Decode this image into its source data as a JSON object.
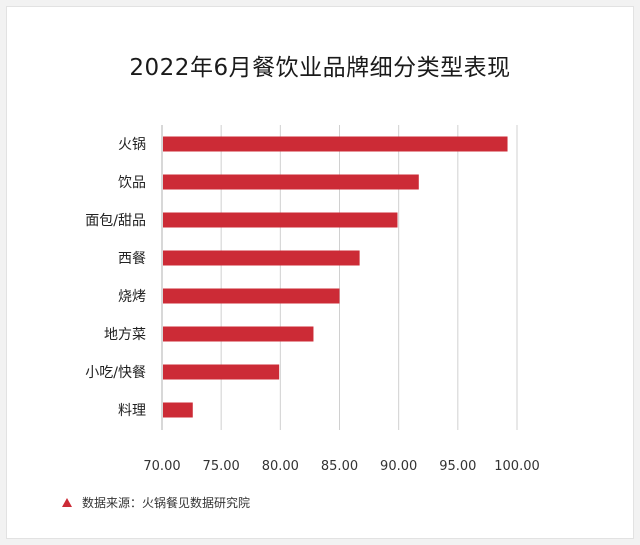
{
  "title": "2022年6月餐饮业品牌细分类型表现",
  "source": "数据来源：火锅餐见数据研究院",
  "colors": {
    "bar": "#cc2b36",
    "grid": "#d0d0d0",
    "axis": "#b0b0b0"
  },
  "chart_data": {
    "type": "bar",
    "orientation": "horizontal",
    "categories": [
      "火锅",
      "饮品",
      "面包/甜品",
      "西餐",
      "烧烤",
      "地方菜",
      "小吃/快餐",
      "料理"
    ],
    "values": [
      99.2,
      91.7,
      89.9,
      86.7,
      85.0,
      82.8,
      79.9,
      72.6
    ],
    "xlim": [
      70,
      100
    ],
    "xticks": [
      "70.00",
      "75.00",
      "80.00",
      "85.00",
      "90.00",
      "95.00",
      "100.00"
    ],
    "grid": true,
    "legend": "none"
  }
}
